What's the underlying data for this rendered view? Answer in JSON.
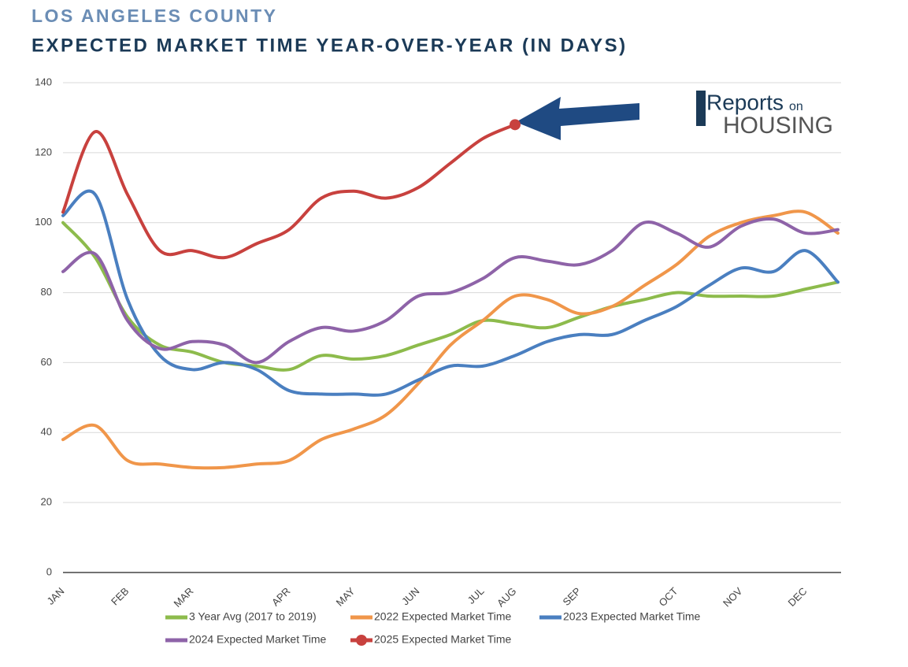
{
  "chart_data": {
    "type": "line",
    "supertitle": "LOS ANGELES COUNTY",
    "title": "EXPECTED MARKET TIME YEAR-OVER-YEAR (IN DAYS)",
    "logo": {
      "line1": "Reports",
      "line1b": "on",
      "line2": "HOUSING"
    },
    "categories": [
      "JAN",
      null,
      "FEB",
      null,
      "MAR",
      null,
      null,
      "APR",
      null,
      "MAY",
      null,
      "JUN",
      null,
      "JUL",
      "AUG",
      null,
      "SEP",
      null,
      null,
      "OCT",
      null,
      "NOV",
      null,
      "DEC",
      null
    ],
    "ylim": [
      0,
      140
    ],
    "yticks": [
      0,
      20,
      40,
      60,
      80,
      100,
      120,
      140
    ],
    "grid": true,
    "series": [
      {
        "name": "3 Year Avg (2017 to 2019)",
        "color": "#8dbb4c",
        "values": [
          100,
          90,
          73,
          65,
          63,
          60,
          59,
          58,
          62,
          61,
          62,
          65,
          68,
          72,
          71,
          70,
          73,
          76,
          78,
          80,
          79,
          79,
          79,
          81,
          83
        ]
      },
      {
        "name": "2022 Expected Market Time",
        "color": "#f0964a",
        "values": [
          38,
          42,
          32,
          31,
          30,
          30,
          31,
          32,
          38,
          41,
          45,
          54,
          65,
          72,
          79,
          78,
          74,
          76,
          82,
          88,
          96,
          100,
          102,
          103,
          97
        ]
      },
      {
        "name": "2023 Expected Market Time",
        "color": "#4a7fc0",
        "values": [
          102,
          108,
          78,
          62,
          58,
          60,
          58,
          52,
          51,
          51,
          51,
          55,
          59,
          59,
          62,
          66,
          68,
          68,
          72,
          76,
          82,
          87,
          86,
          92,
          83
        ]
      },
      {
        "name": "2024 Expected Market Time",
        "color": "#8e63a8",
        "values": [
          86,
          91,
          72,
          64,
          66,
          65,
          60,
          66,
          70,
          69,
          72,
          79,
          80,
          84,
          90,
          89,
          88,
          92,
          100,
          97,
          93,
          99,
          101,
          97,
          98
        ]
      },
      {
        "name": "2025 Expected Market Time",
        "color": "#c8413e",
        "values": [
          103,
          126,
          108,
          92,
          92,
          90,
          94,
          98,
          107,
          109,
          107,
          110,
          117,
          124,
          128,
          null,
          null,
          null,
          null,
          null,
          null,
          null,
          null,
          null,
          null
        ]
      }
    ]
  }
}
